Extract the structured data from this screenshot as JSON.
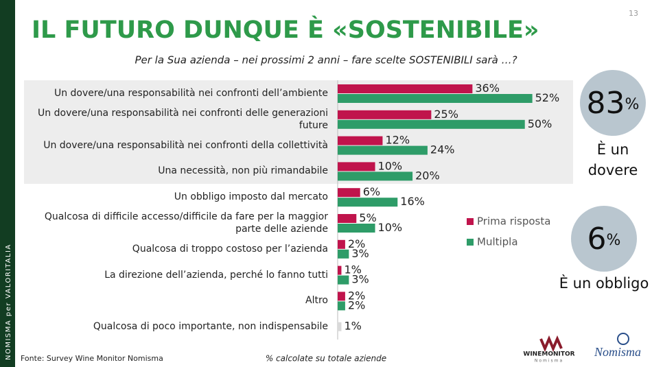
{
  "page_number": "13",
  "title": "IL FUTURO DUNQUE È «SOSTENIBILE»",
  "sidebar": "NOMISMA per VALORITALIA",
  "source": "Fonte: Survey Wine Monitor Nomisma",
  "note": "% calcolate su totale aziende",
  "callouts": [
    {
      "number": "83",
      "unit": "%",
      "caption": "È un dovere"
    },
    {
      "number": "6",
      "unit": "%",
      "caption": "È un obbligo"
    }
  ],
  "logos": {
    "wine_monitor": "WINEMONITOR",
    "wine_monitor_sub": "Nomisma",
    "nomisma": "Nomisma"
  },
  "chart_data": {
    "type": "grouped-horizontal-bar",
    "subtitle": "Per la Sua azienda – nei prossimi 2 anni – fare scelte SOSTENIBILI sarà …?",
    "categories": [
      "Un dovere/una responsabilità nei confronti dell’ambiente",
      "Un dovere/una responsabilità nei confronti delle generazioni future",
      "Un dovere/una responsabilità nei confronti della collettività",
      "Una necessità, non più rimandabile",
      "Un obbligo imposto dal mercato",
      "Qualcosa di difficile accesso/difficile da fare per la maggior parte delle aziende",
      "Qualcosa di troppo costoso per l’azienda",
      "La direzione dell’azienda, perché lo fanno tutti",
      "Altro",
      "Qualcosa di poco importante, non indispensabile"
    ],
    "series": [
      {
        "name": "Prima risposta",
        "color": "#c0144c",
        "values": [
          36,
          25,
          12,
          10,
          6,
          5,
          2,
          1,
          2,
          null
        ],
        "value_labels": [
          "36%",
          "25%",
          "12%",
          "10%",
          "6%",
          "5%",
          "2%",
          "1%",
          "2%",
          null
        ]
      },
      {
        "name": "Multipla",
        "color": "#2e9c68",
        "values": [
          52,
          50,
          24,
          20,
          16,
          10,
          3,
          3,
          2,
          1
        ],
        "value_labels": [
          "52%",
          "50%",
          "24%",
          "20%",
          "16%",
          "10%",
          "3%",
          "3%",
          "2%",
          "1%"
        ],
        "value_colors": [
          null,
          null,
          null,
          null,
          null,
          null,
          null,
          null,
          null,
          "#d9d9d9"
        ]
      }
    ],
    "xlim": [
      0,
      55
    ],
    "legend": "right"
  }
}
